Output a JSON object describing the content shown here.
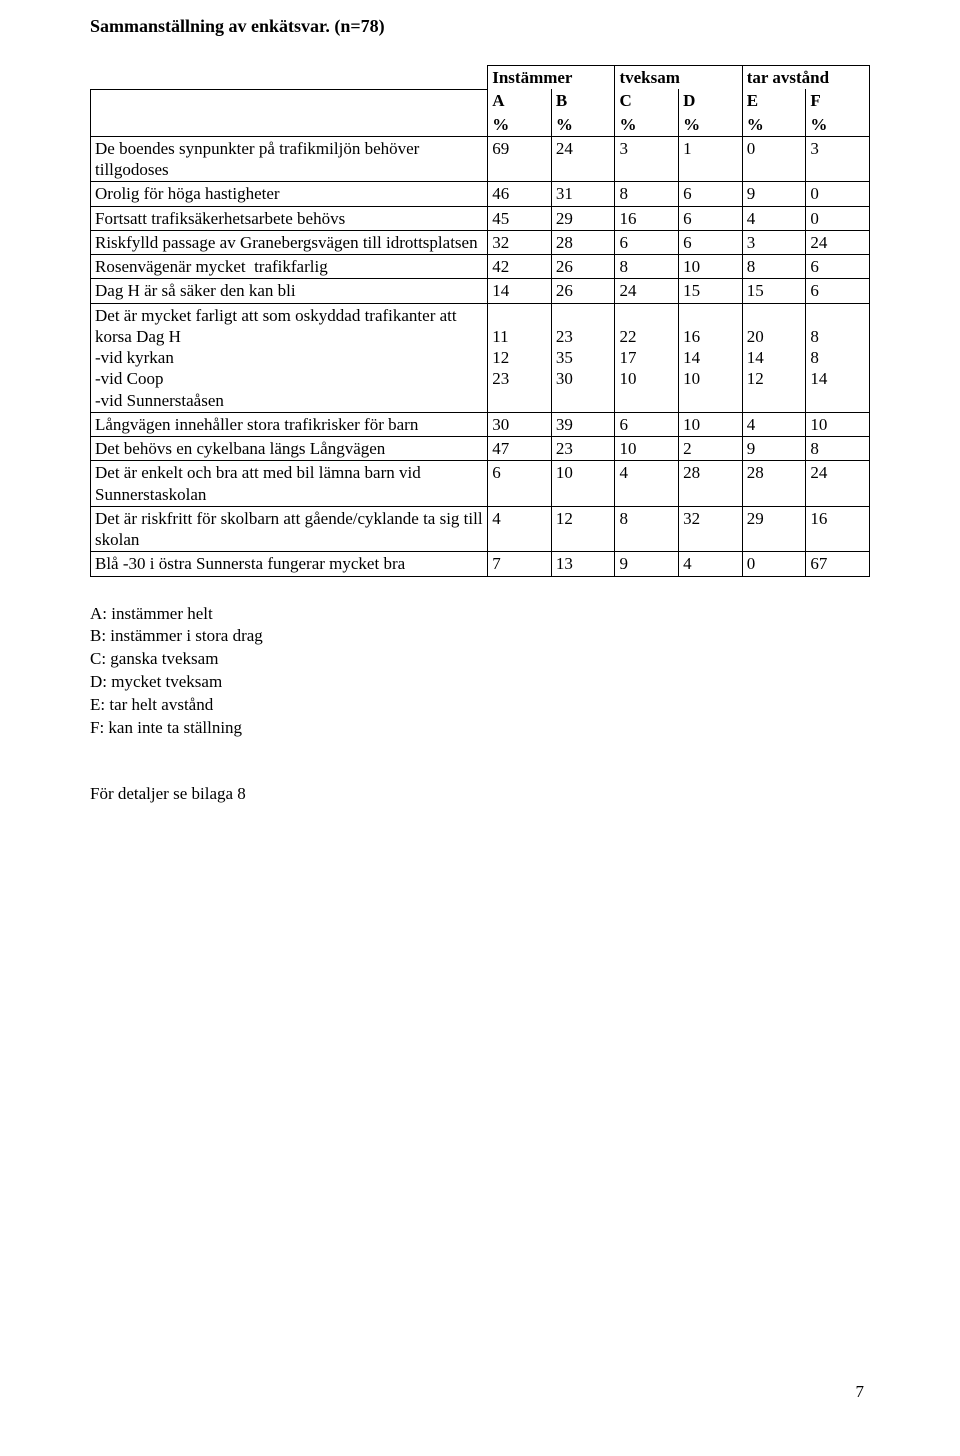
{
  "title": "Sammanställning av enkätsvar. (n=78)",
  "table": {
    "groupHeaders": [
      "Instämmer",
      "tveksam",
      "tar avstånd"
    ],
    "colLabels": [
      "A",
      "B",
      "C",
      "D",
      "E",
      "F"
    ],
    "pctLabel": "%",
    "colWidths": [
      "51%",
      "8.17%",
      "8.17%",
      "8.17%",
      "8.17%",
      "8.17%",
      "8.17%"
    ],
    "rows": [
      {
        "label": "De boendes synpunkter på trafikmiljön behöver tillgodoses",
        "v": [
          "69",
          "24",
          "3",
          "1",
          "0",
          "3"
        ]
      },
      {
        "label": "Orolig för höga hastigheter",
        "v": [
          "46",
          "31",
          "8",
          "6",
          "9",
          "0"
        ]
      },
      {
        "label": "Fortsatt trafiksäkerhetsarbete behövs",
        "v": [
          "45",
          "29",
          "16",
          "6",
          "4",
          "0"
        ]
      },
      {
        "label": "Riskfylld passage av Granebergsvägen till idrottsplatsen",
        "v": [
          "32",
          "28",
          "6",
          "6",
          "3",
          "24"
        ]
      },
      {
        "label": "Rosenvägenär mycket  trafikfarlig",
        "v": [
          "42",
          "26",
          "8",
          "10",
          "8",
          "6"
        ]
      },
      {
        "label": "Dag H är så säker den kan bli",
        "v": [
          "14",
          "26",
          "24",
          "15",
          "15",
          "6"
        ]
      },
      {
        "label": "Det är mycket farligt att som oskyddad trafikanter att korsa Dag H\n-vid kyrkan\n-vid Coop\n-vid Sunnerstaåsen",
        "v": [
          "\n11\n12\n23",
          "\n23\n35\n30",
          "\n22\n17\n10",
          "\n16\n14\n10",
          "\n20\n14\n12",
          "\n8\n8\n14"
        ],
        "multiline": true
      },
      {
        "label": "Långvägen innehåller stora trafikrisker för barn",
        "v": [
          "30",
          "39",
          "6",
          "10",
          "4",
          "10"
        ]
      },
      {
        "label": "Det behövs en cykelbana längs Långvägen",
        "v": [
          "47",
          "23",
          "10",
          "2",
          "9",
          "8"
        ]
      },
      {
        "label": "Det är enkelt och bra att med bil lämna barn vid Sunnerstaskolan",
        "v": [
          "6",
          "10",
          "4",
          "28",
          "28",
          "24"
        ]
      },
      {
        "label": "Det är riskfritt för skolbarn att gående/cyklande ta sig till skolan",
        "v": [
          "4",
          "12",
          "8",
          "32",
          "29",
          "16"
        ]
      },
      {
        "label": "Blå -30 i östra Sunnersta fungerar mycket bra",
        "v": [
          "7",
          "13",
          "9",
          "4",
          "0",
          "67"
        ]
      }
    ]
  },
  "legend": [
    "A: instämmer helt",
    "B: instämmer i stora drag",
    "C: ganska tveksam",
    "D: mycket tveksam",
    "E: tar helt avstånd",
    "F: kan inte ta ställning"
  ],
  "footerNote": "För detaljer se bilaga 8",
  "pageNumber": "7",
  "colors": {
    "text": "#000000",
    "background": "#ffffff",
    "border": "#000000"
  }
}
